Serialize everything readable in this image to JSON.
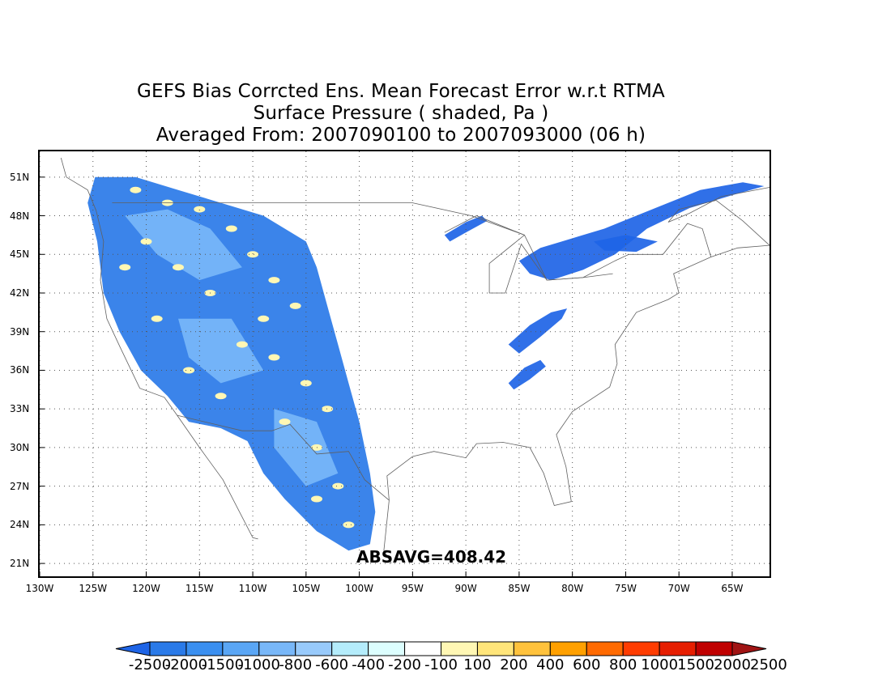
{
  "title": {
    "line1": "GEFS Bias Corrcted Ens. Mean Forecast Error w.r.t RTMA",
    "line2": "Surface Pressure ( shaded, Pa )",
    "line3": "Averaged From: 2007090100 to 2007093000 (06 h)"
  },
  "map": {
    "lat_labels": [
      {
        "text": "51N",
        "value": 51
      },
      {
        "text": "48N",
        "value": 48
      },
      {
        "text": "45N",
        "value": 45
      },
      {
        "text": "42N",
        "value": 42
      },
      {
        "text": "39N",
        "value": 39
      },
      {
        "text": "36N",
        "value": 36
      },
      {
        "text": "33N",
        "value": 33
      },
      {
        "text": "30N",
        "value": 30
      },
      {
        "text": "27N",
        "value": 27
      },
      {
        "text": "24N",
        "value": 24
      },
      {
        "text": "21N",
        "value": 21
      }
    ],
    "lon_labels": [
      {
        "text": "130W",
        "value": -130
      },
      {
        "text": "125W",
        "value": -125
      },
      {
        "text": "120W",
        "value": -120
      },
      {
        "text": "115W",
        "value": -115
      },
      {
        "text": "110W",
        "value": -110
      },
      {
        "text": "105W",
        "value": -105
      },
      {
        "text": "100W",
        "value": -100
      },
      {
        "text": "95W",
        "value": -95
      },
      {
        "text": "90W",
        "value": -90
      },
      {
        "text": "85W",
        "value": -85
      },
      {
        "text": "80W",
        "value": -80
      },
      {
        "text": "75W",
        "value": -75
      },
      {
        "text": "70W",
        "value": -70
      },
      {
        "text": "65W",
        "value": -65
      }
    ],
    "lon_range": [
      -130,
      -61.5
    ],
    "lat_range": [
      20,
      53
    ],
    "grid": "dotted",
    "absavg": "ABSAVG=408.42"
  },
  "colorbar": {
    "colors": [
      "#1e64e6",
      "#2a7ae8",
      "#3a8ff0",
      "#5aa6f5",
      "#78b7f8",
      "#98cafb",
      "#b4ecfb",
      "#dcfefe",
      "#ffffff",
      "#fff7b4",
      "#ffe57a",
      "#ffc23c",
      "#ffa000",
      "#ff6a00",
      "#ff3c00",
      "#e61e00",
      "#c00000",
      "#a01414"
    ],
    "labels": [
      "-2500",
      "-2000",
      "-1500",
      "-1000",
      "-800",
      "-600",
      "-400",
      "-200",
      "-100",
      "100",
      "200",
      "400",
      "600",
      "800",
      "1000",
      "1500",
      "2000",
      "2500"
    ]
  }
}
